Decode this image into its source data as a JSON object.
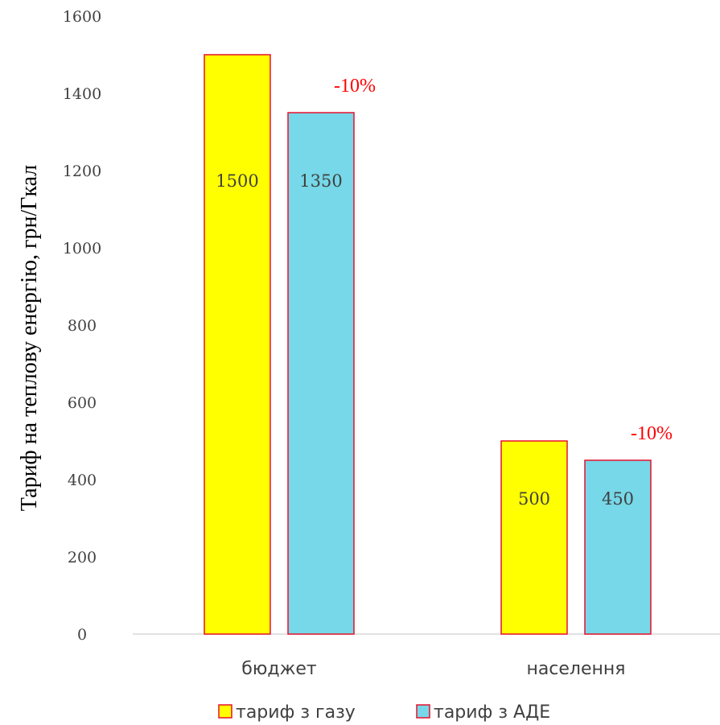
{
  "chart_data": {
    "type": "bar",
    "categories": [
      "бюджет",
      "населення"
    ],
    "series": [
      {
        "name": "тариф з газу",
        "values": [
          1500,
          500
        ],
        "color": "#ffff00",
        "stroke": "#e8102a"
      },
      {
        "name": "тариф з АДЕ",
        "values": [
          1350,
          450
        ],
        "color": "#76d8e8",
        "stroke": "#e8102a"
      }
    ],
    "data_labels": [
      [
        "1500",
        "500"
      ],
      [
        "1350",
        "450"
      ]
    ],
    "annotations": [
      "-10%",
      "-10%"
    ],
    "annotation_color": "#ff0000",
    "ylabel": "Тариф на теплову енергію, грн/Гкал",
    "xlabel": "",
    "ylim": [
      0,
      1600
    ],
    "yticks": [
      "0",
      "200",
      "400",
      "600",
      "800",
      "1000",
      "1200",
      "1400",
      "1600"
    ],
    "grid": false,
    "legend_position": "bottom",
    "axis_color": "#d9d9d9",
    "text_color": "#404040"
  }
}
